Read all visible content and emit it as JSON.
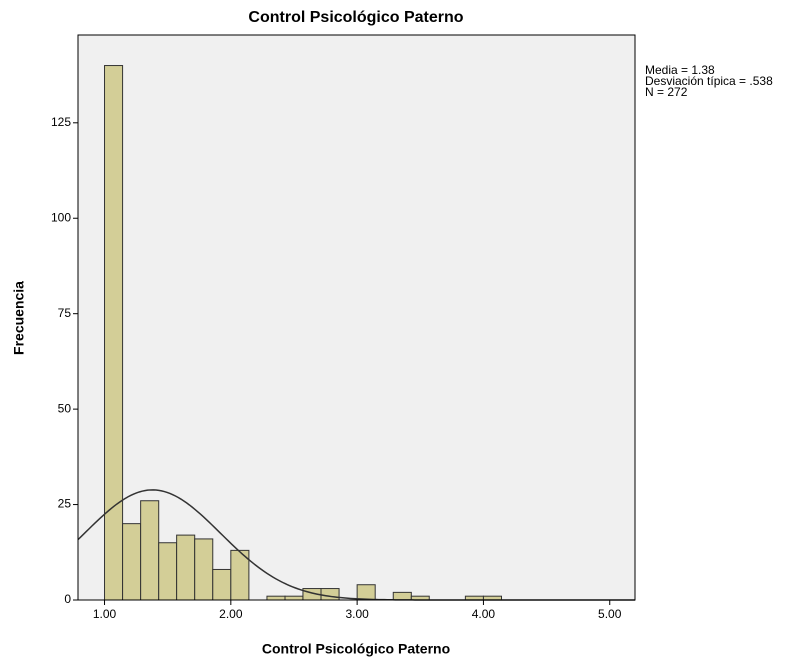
{
  "chart_data": {
    "type": "histogram",
    "title": "Control Psicológico Paterno",
    "x_label": "Control Psicológico Paterno",
    "y_label": "Frecuencia",
    "bins": [
      1,
      1.143,
      1.286,
      1.429,
      1.571,
      1.714,
      1.857,
      2,
      2.143,
      2.286,
      2.429,
      2.571,
      2.714,
      2.857,
      3,
      3.143,
      3.286,
      3.429,
      3.571,
      3.714,
      3.857,
      4,
      4.143
    ],
    "values": [
      140,
      20,
      26,
      15,
      17,
      16,
      8,
      13,
      0,
      1,
      1,
      3,
      3,
      0,
      4,
      0,
      2,
      1,
      0,
      0,
      1,
      1
    ],
    "color": "#d3ce97",
    "xlim": [
      0.79,
      5.2
    ],
    "ylim": [
      0,
      148
    ],
    "xticks": [
      {
        "value": 1,
        "label": "1.00"
      },
      {
        "value": 2,
        "label": "2.00"
      },
      {
        "value": 3,
        "label": "3.00"
      },
      {
        "value": 4,
        "label": "4.00"
      },
      {
        "value": 5,
        "label": "5.00"
      }
    ],
    "yticks": [
      0,
      25,
      50,
      75,
      100,
      125
    ],
    "annotations": [
      {
        "value": 1.38,
        "label": "Media = 1.38"
      },
      {
        "value": 0.538,
        "label": "Desviación típica = .538"
      },
      {
        "value": 272,
        "label": "N = 272"
      }
    ]
  }
}
